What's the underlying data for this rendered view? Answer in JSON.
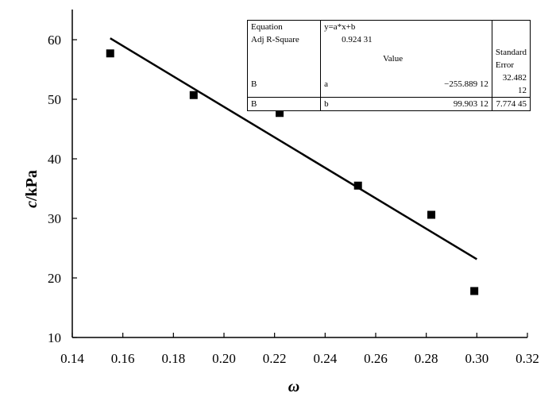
{
  "chart_data": {
    "type": "scatter",
    "xlabel": "ω",
    "ylabel_italic": "c",
    "ylabel_unit": "/kPa",
    "xlim": [
      0.14,
      0.32
    ],
    "ylim": [
      10,
      65
    ],
    "x_ticks": [
      "0.14",
      "0.16",
      "0.18",
      "0.20",
      "0.22",
      "0.24",
      "0.26",
      "0.28",
      "0.30",
      "0.32"
    ],
    "y_ticks": [
      "10",
      "20",
      "30",
      "40",
      "50",
      "60"
    ],
    "grid": false,
    "points": [
      {
        "x": 0.155,
        "y": 57.7
      },
      {
        "x": 0.188,
        "y": 50.7
      },
      {
        "x": 0.222,
        "y": 47.7
      },
      {
        "x": 0.253,
        "y": 35.5
      },
      {
        "x": 0.282,
        "y": 30.6
      },
      {
        "x": 0.299,
        "y": 17.8
      }
    ],
    "fit_line": {
      "a": -255.88912,
      "b": 99.90312,
      "x_range": [
        0.155,
        0.3
      ]
    },
    "fit_table": {
      "equation_label": "Equation",
      "equation": "y=a*x+b",
      "adj_r2_label": "Adj R-Square",
      "adj_r2": "0.924 31",
      "value_header": "Value",
      "stderr_header": "Standard Error",
      "rows": [
        {
          "group": "B",
          "param": "a",
          "value": "−255.889 12",
          "stderr": "32.482 12"
        },
        {
          "group": "B",
          "param": "b",
          "value": "99.903 12",
          "stderr": "7.774 45"
        }
      ]
    },
    "colors": {
      "marker": "#000000",
      "line": "#000000"
    }
  }
}
